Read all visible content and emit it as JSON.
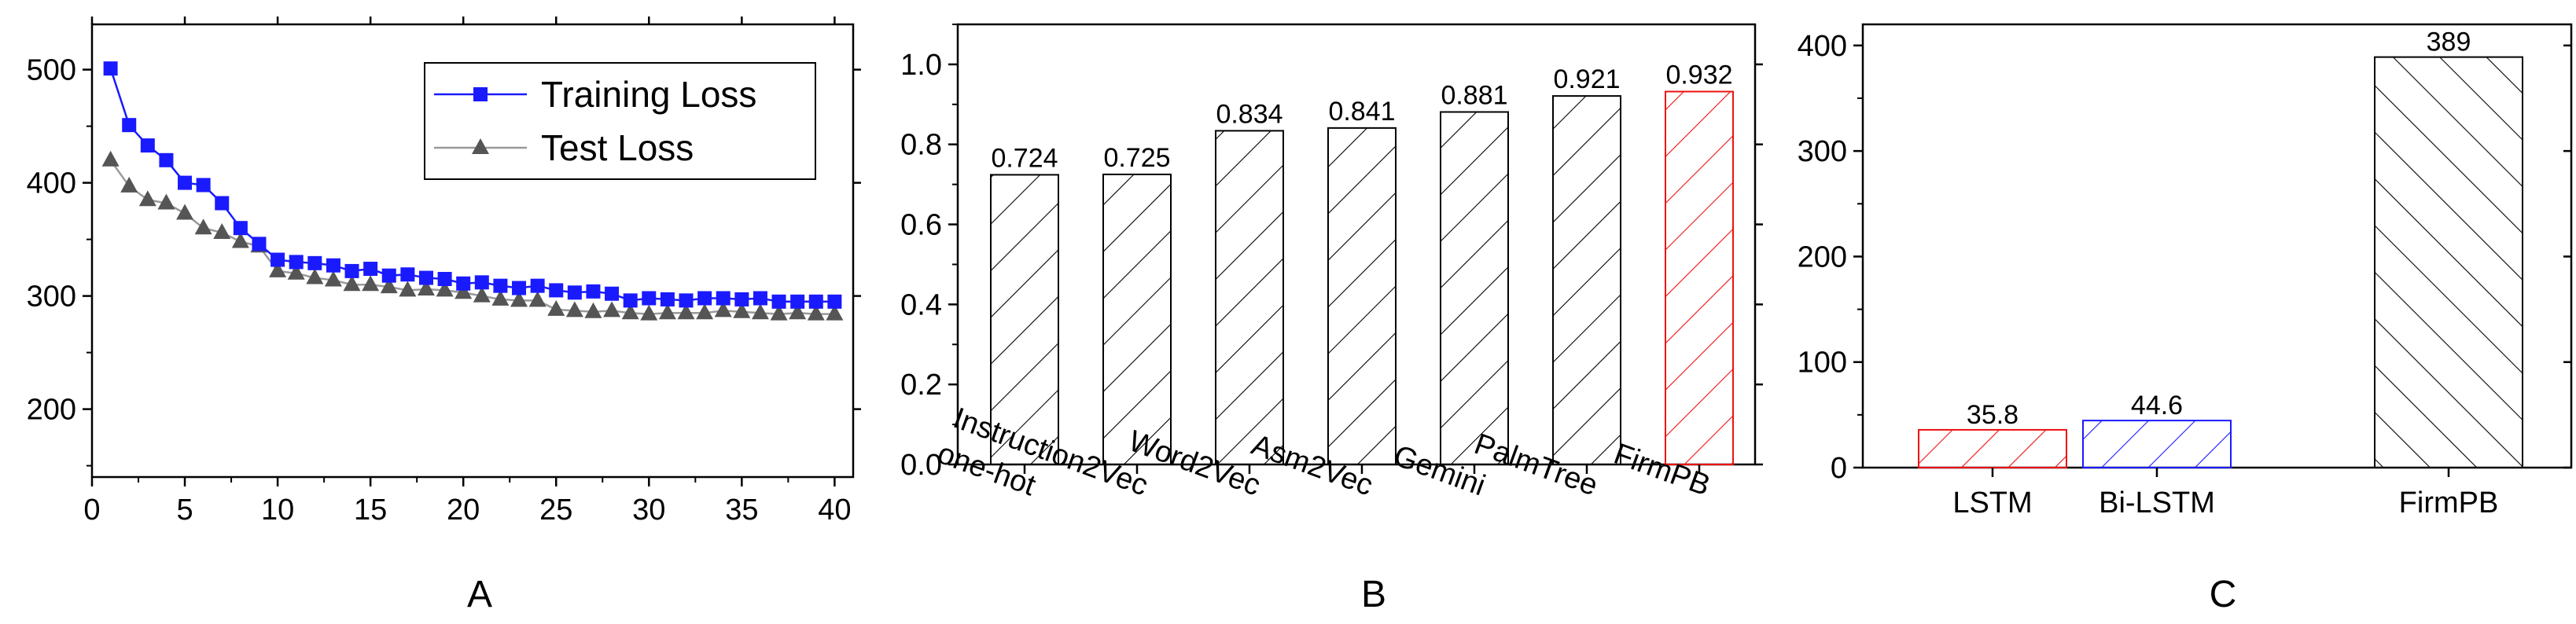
{
  "chart_data": [
    {
      "panel": "A",
      "type": "line",
      "xlim": [
        0,
        41
      ],
      "ylim": [
        140,
        540
      ],
      "xticks": [
        0,
        5,
        10,
        15,
        20,
        25,
        30,
        35,
        40
      ],
      "yticks": [
        200,
        300,
        400,
        500
      ],
      "legend_position": "top-right",
      "series": [
        {
          "name": "Training Loss",
          "color": "#1a1aff",
          "marker": "square",
          "x": [
            1,
            2,
            3,
            4,
            5,
            6,
            7,
            8,
            9,
            10,
            11,
            12,
            13,
            14,
            15,
            16,
            17,
            18,
            19,
            20,
            21,
            22,
            23,
            24,
            25,
            26,
            27,
            28,
            29,
            30,
            31,
            32,
            33,
            34,
            35,
            36,
            37,
            38,
            39,
            40
          ],
          "y": [
            501,
            451,
            433,
            420,
            400,
            398,
            382,
            360,
            346,
            332,
            330,
            329,
            327,
            322,
            324,
            318,
            319,
            316,
            315,
            311,
            312,
            309,
            307,
            309,
            305,
            303,
            304,
            302,
            296,
            298,
            297,
            296,
            298,
            298,
            297,
            298,
            295,
            295,
            295,
            295
          ]
        },
        {
          "name": "Test Loss",
          "color": "#555555",
          "marker": "triangle",
          "x": [
            1,
            2,
            3,
            4,
            5,
            6,
            7,
            8,
            9,
            10,
            11,
            12,
            13,
            14,
            15,
            16,
            17,
            18,
            19,
            20,
            21,
            22,
            23,
            24,
            25,
            26,
            27,
            28,
            29,
            30,
            31,
            32,
            33,
            34,
            35,
            36,
            37,
            38,
            39,
            40
          ],
          "y": [
            420,
            397,
            385,
            382,
            373,
            360,
            356,
            348,
            344,
            322,
            320,
            316,
            314,
            310,
            310,
            308,
            305,
            306,
            305,
            303,
            300,
            297,
            296,
            296,
            288,
            287,
            286,
            287,
            285,
            284,
            285,
            285,
            285,
            287,
            286,
            285,
            284,
            285,
            284,
            284
          ]
        }
      ]
    },
    {
      "panel": "B",
      "type": "bar",
      "categories": [
        "one-hot",
        "Instruction2Vec",
        "Word2Vec",
        "Asm2Vec",
        "Gemini",
        "PalmTree",
        "FirmPB"
      ],
      "values": [
        0.724,
        0.725,
        0.834,
        0.841,
        0.881,
        0.921,
        0.932
      ],
      "value_labels": [
        "0.724",
        "0.725",
        "0.834",
        "0.841",
        "0.881",
        "0.921",
        "0.932"
      ],
      "ylim": [
        0,
        1.1
      ],
      "yticks": [
        0.0,
        0.2,
        0.4,
        0.6,
        0.8,
        1.0
      ],
      "ytick_labels": [
        "0.0",
        "0.2",
        "0.4",
        "0.6",
        "0.8",
        "1.0"
      ],
      "hatch_colors": [
        "#000000",
        "#000000",
        "#000000",
        "#000000",
        "#000000",
        "#000000",
        "#ee1111"
      ],
      "hatch": "forward-diagonal"
    },
    {
      "panel": "C",
      "type": "bar",
      "categories": [
        "LSTM",
        "Bi-LSTM",
        "FirmPB"
      ],
      "values": [
        35.8,
        44.6,
        389
      ],
      "value_labels": [
        "35.8",
        "44.6",
        "389"
      ],
      "ylim": [
        0,
        420
      ],
      "yticks": [
        0,
        100,
        200,
        300,
        400
      ],
      "hatch_colors": [
        "#ee1111",
        "#1a1aff",
        "#000000"
      ],
      "hatch_styles": [
        "forward-diagonal",
        "forward-diagonal",
        "backward-diagonal"
      ]
    }
  ],
  "panel_labels": [
    "A",
    "B",
    "C"
  ]
}
